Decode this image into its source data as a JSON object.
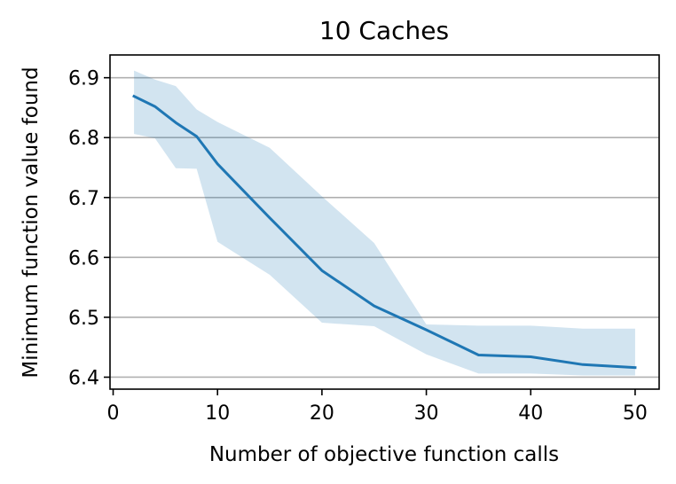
{
  "chart_data": {
    "type": "line",
    "title": "10 Caches",
    "xlabel": "Number of objective function calls",
    "ylabel": "Minimum function value found",
    "xlim": [
      -0.3,
      52.3
    ],
    "ylim": [
      6.38,
      6.938
    ],
    "xticks": [
      0,
      10,
      20,
      30,
      40,
      50
    ],
    "xtick_labels": [
      "0",
      "10",
      "20",
      "30",
      "40",
      "50"
    ],
    "yticks": [
      6.4,
      6.5,
      6.6,
      6.7,
      6.8,
      6.9
    ],
    "ytick_labels": [
      "6.4",
      "6.5",
      "6.6",
      "6.7",
      "6.8",
      "6.9"
    ],
    "grid": "horizontal",
    "line_color": "#1f77b4",
    "band_color": "#1f77b4",
    "band_opacity": 0.2,
    "series": [
      {
        "x": [
          2,
          4,
          6,
          8,
          10,
          15,
          20,
          25,
          30,
          35,
          40,
          45,
          50
        ],
        "mean": [
          6.869,
          6.852,
          6.825,
          6.802,
          6.756,
          6.666,
          6.578,
          6.519,
          6.479,
          6.437,
          6.434,
          6.421,
          6.416
        ],
        "upper": [
          6.912,
          6.897,
          6.886,
          6.847,
          6.826,
          6.783,
          6.702,
          6.624,
          6.488,
          6.486,
          6.486,
          6.481,
          6.481
        ],
        "lower": [
          6.806,
          6.799,
          6.749,
          6.748,
          6.626,
          6.571,
          6.491,
          6.485,
          6.438,
          6.406,
          6.406,
          6.403,
          6.403
        ]
      }
    ]
  }
}
